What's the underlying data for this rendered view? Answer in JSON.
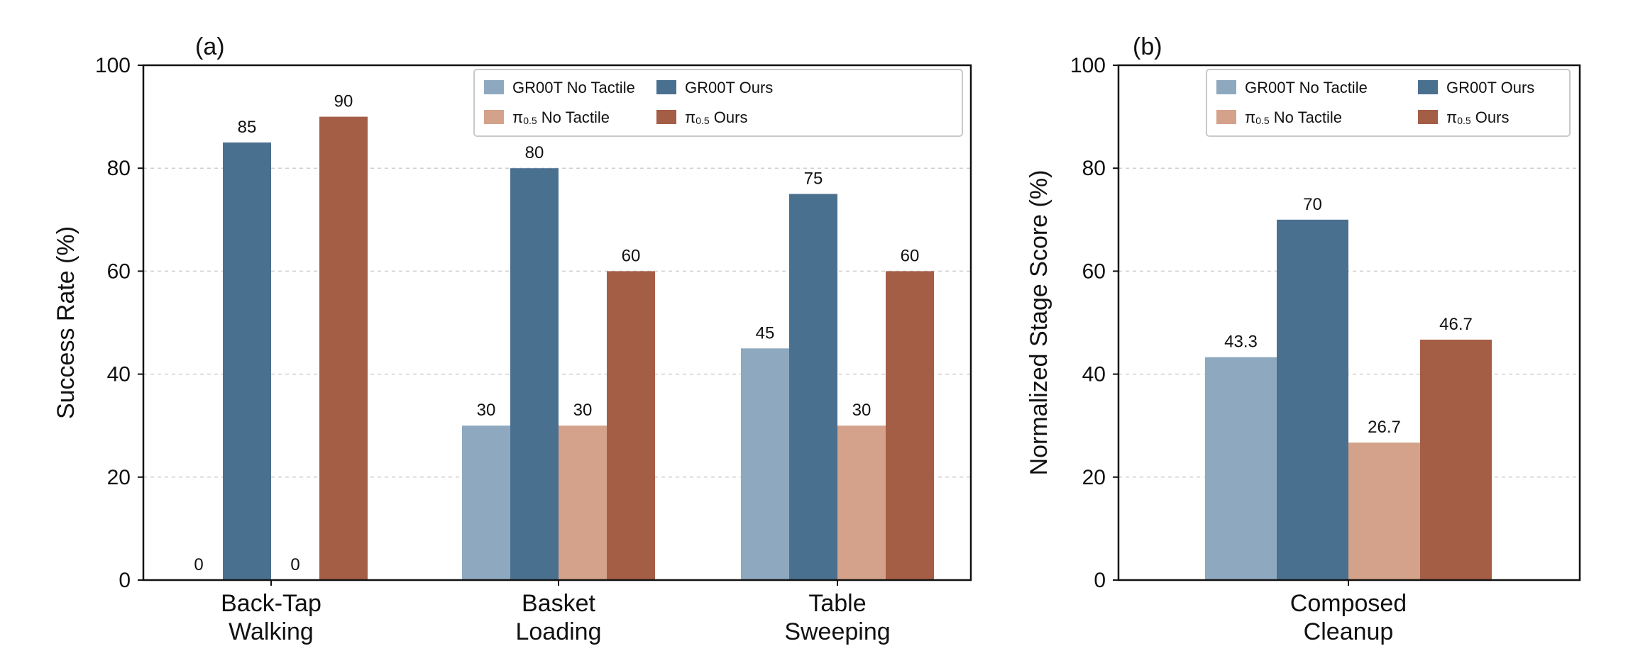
{
  "colors": {
    "gr00t_no_tactile": "#8ea9bf",
    "gr00t_ours": "#4a7090",
    "pi_no_tactile": "#d4a28a",
    "pi_ours": "#a55e46"
  },
  "chart_data": [
    {
      "panel": "(a)",
      "type": "bar",
      "ylabel": "Success Rate (%)",
      "ylim": [
        0,
        100
      ],
      "yticks": [
        0,
        20,
        40,
        60,
        80,
        100
      ],
      "grid": true,
      "legend_position": "top-right",
      "categories": [
        [
          "Back-Tap",
          "Walking"
        ],
        [
          "Basket",
          "Loading"
        ],
        [
          "Table",
          "Sweeping"
        ]
      ],
      "series": [
        {
          "name": "GR00T No Tactile",
          "name_main": "GR00T No Tactile",
          "name_sub": "",
          "values": [
            0,
            30,
            45
          ],
          "labels": [
            "0",
            "30",
            "45"
          ]
        },
        {
          "name": "GR00T Ours",
          "name_main": "GR00T Ours",
          "name_sub": "",
          "values": [
            85,
            80,
            75
          ],
          "labels": [
            "85",
            "80",
            "75"
          ]
        },
        {
          "name": "π0.5 No Tactile",
          "name_main": "π",
          "name_sub": "0.5",
          "name_rest": " No Tactile",
          "values": [
            0,
            30,
            30
          ],
          "labels": [
            "0",
            "30",
            "30"
          ]
        },
        {
          "name": "π0.5 Ours",
          "name_main": "π",
          "name_sub": "0.5",
          "name_rest": " Ours",
          "values": [
            90,
            60,
            60
          ],
          "labels": [
            "90",
            "60",
            "60"
          ]
        }
      ]
    },
    {
      "panel": "(b)",
      "type": "bar",
      "ylabel": "Normalized Stage Score (%)",
      "ylim": [
        0,
        100
      ],
      "yticks": [
        0,
        20,
        40,
        60,
        80,
        100
      ],
      "grid": true,
      "legend_position": "top-right",
      "categories": [
        [
          "Composed",
          "Cleanup"
        ]
      ],
      "series": [
        {
          "name": "GR00T No Tactile",
          "name_main": "GR00T No Tactile",
          "name_sub": "",
          "values": [
            43.3
          ],
          "labels": [
            "43.3"
          ]
        },
        {
          "name": "GR00T Ours",
          "name_main": "GR00T Ours",
          "name_sub": "",
          "values": [
            70
          ],
          "labels": [
            "70"
          ]
        },
        {
          "name": "π0.5 No Tactile",
          "name_main": "π",
          "name_sub": "0.5",
          "name_rest": " No Tactile",
          "values": [
            26.7
          ],
          "labels": [
            "26.7"
          ]
        },
        {
          "name": "π0.5 Ours",
          "name_main": "π",
          "name_sub": "0.5",
          "name_rest": " Ours",
          "values": [
            46.7
          ],
          "labels": [
            "46.7"
          ]
        }
      ]
    }
  ]
}
